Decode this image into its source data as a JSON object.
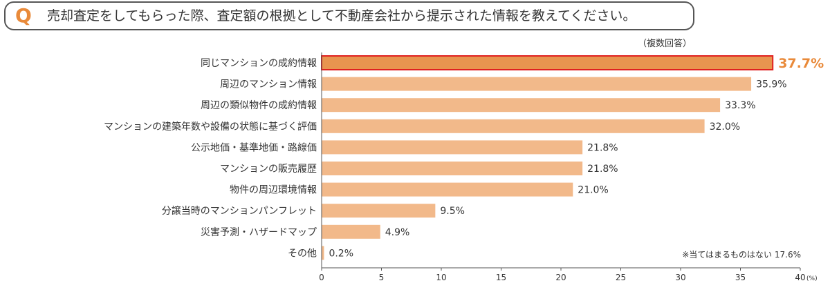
{
  "question": {
    "mark": "Q",
    "text": "売却査定をしてもらった際、査定額の根拠として不動産会社から提示された情報を教えてください。"
  },
  "note": "（複数回答）",
  "footnote": "※当てはまるものはない 17.6%",
  "chart_data": {
    "type": "bar",
    "orientation": "horizontal",
    "categories": [
      "同じマンションの成約情報",
      "周辺のマンション情報",
      "周辺の類似物件の成約情報",
      "マンションの建築年数や設備の状態に基づく評価",
      "公示地価・基準地価・路線価",
      "マンションの販売履歴",
      "物件の周辺環境情報",
      "分譲当時のマンションパンフレット",
      "災害予測・ハザードマップ",
      "その他"
    ],
    "values": [
      37.7,
      35.9,
      33.3,
      32.0,
      21.8,
      21.8,
      21.0,
      9.5,
      4.9,
      0.2
    ],
    "value_labels": [
      "37.7%",
      "35.9%",
      "33.3%",
      "32.0%",
      "21.8%",
      "21.8%",
      "21.0%",
      "9.5%",
      "4.9%",
      "0.2%"
    ],
    "highlight_index": 0,
    "xlim": [
      0,
      40
    ],
    "xticks": [
      "0",
      "5",
      "10",
      "15",
      "20",
      "25",
      "30",
      "35",
      "40"
    ],
    "xunit": "(%)",
    "colors": {
      "bar": "#f2b98a",
      "highlight_bar": "#e8944f",
      "highlight_border": "#e02020",
      "highlight_text": "#e98a3a"
    }
  }
}
